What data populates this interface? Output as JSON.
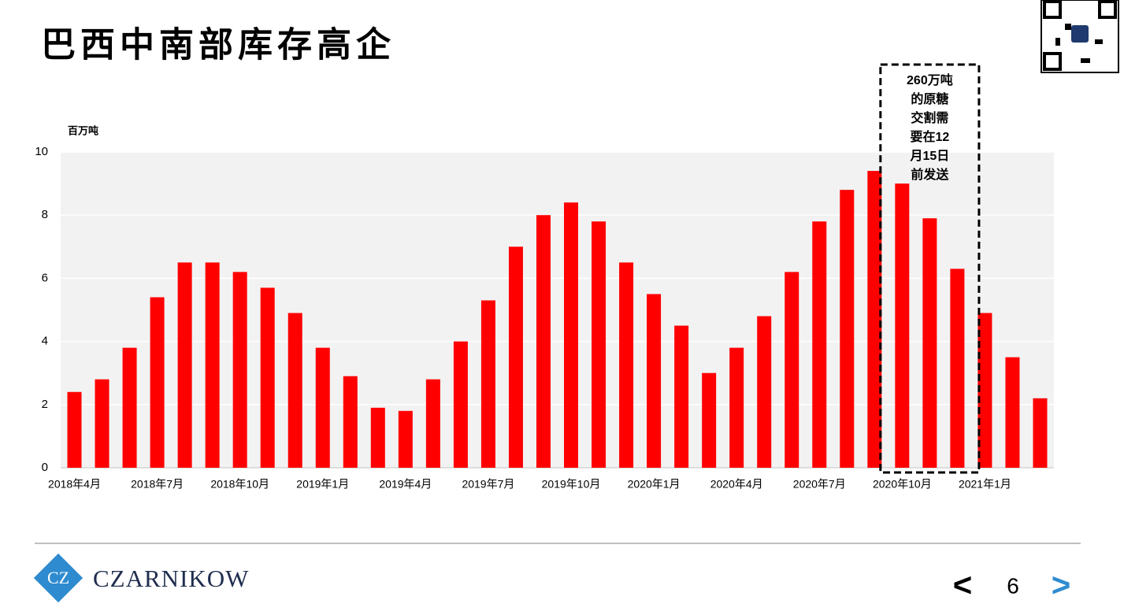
{
  "header": {
    "title": "巴西中南部库存高企"
  },
  "chart_data": {
    "type": "bar",
    "y_label": "百万吨",
    "categories": [
      "2018年4月",
      null,
      null,
      "2018年7月",
      null,
      null,
      "2018年10月",
      null,
      null,
      "2019年1月",
      null,
      null,
      "2019年4月",
      null,
      null,
      "2019年7月",
      null,
      null,
      "2019年10月",
      null,
      null,
      "2020年1月",
      null,
      null,
      "2020年4月",
      null,
      null,
      "2020年7月",
      null,
      null,
      "2020年10月",
      null,
      null,
      "2021年1月",
      null,
      null
    ],
    "values": [
      2.4,
      2.8,
      3.8,
      5.4,
      6.5,
      6.5,
      6.2,
      5.7,
      4.9,
      3.8,
      2.9,
      1.9,
      1.8,
      2.8,
      4.0,
      5.3,
      7.0,
      8.0,
      8.4,
      7.8,
      6.5,
      5.5,
      4.5,
      3.0,
      3.8,
      4.8,
      6.2,
      7.8,
      8.8,
      9.4,
      9.0,
      7.9,
      6.3,
      4.9,
      3.5,
      2.2
    ],
    "color": "#ff0000",
    "ylim": [
      0,
      10
    ],
    "yticks": [
      0,
      2,
      4,
      6,
      8,
      10
    ],
    "grid": true,
    "annotation": [
      "260万吨",
      "的原糖",
      "交割需",
      "要在12",
      "月15日",
      "前发送"
    ]
  },
  "footer": {
    "logo": "CZARNIKOW",
    "prev": "<",
    "page": "6",
    "next": ">"
  }
}
